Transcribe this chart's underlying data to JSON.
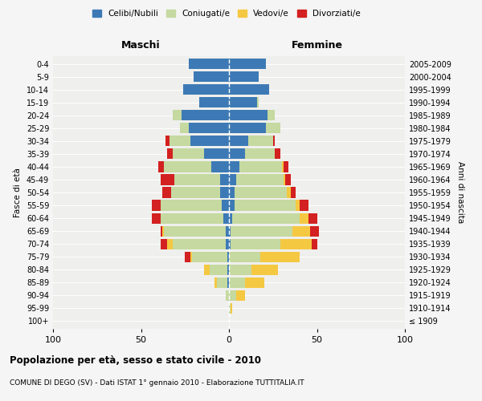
{
  "age_groups": [
    "100+",
    "95-99",
    "90-94",
    "85-89",
    "80-84",
    "75-79",
    "70-74",
    "65-69",
    "60-64",
    "55-59",
    "50-54",
    "45-49",
    "40-44",
    "35-39",
    "30-34",
    "25-29",
    "20-24",
    "15-19",
    "10-14",
    "5-9",
    "0-4"
  ],
  "birth_years": [
    "≤ 1909",
    "1910-1914",
    "1915-1919",
    "1920-1924",
    "1925-1929",
    "1930-1934",
    "1935-1939",
    "1940-1944",
    "1945-1949",
    "1950-1954",
    "1955-1959",
    "1960-1964",
    "1965-1969",
    "1970-1974",
    "1975-1979",
    "1980-1984",
    "1985-1989",
    "1990-1994",
    "1995-1999",
    "2000-2004",
    "2005-2009"
  ],
  "male": {
    "celibi": [
      0,
      0,
      0,
      1,
      1,
      1,
      2,
      2,
      3,
      4,
      5,
      5,
      10,
      14,
      22,
      23,
      27,
      17,
      26,
      20,
      23
    ],
    "coniugati": [
      0,
      0,
      2,
      6,
      10,
      20,
      30,
      35,
      36,
      35,
      28,
      26,
      27,
      18,
      12,
      5,
      5,
      0,
      0,
      0,
      0
    ],
    "vedovi": [
      0,
      0,
      0,
      1,
      3,
      1,
      3,
      1,
      0,
      0,
      0,
      0,
      0,
      0,
      0,
      0,
      0,
      0,
      0,
      0,
      0
    ],
    "divorziati": [
      0,
      0,
      0,
      0,
      0,
      3,
      4,
      1,
      5,
      5,
      5,
      8,
      3,
      3,
      2,
      0,
      0,
      0,
      0,
      0,
      0
    ]
  },
  "female": {
    "nubili": [
      0,
      0,
      0,
      0,
      0,
      0,
      1,
      1,
      2,
      3,
      3,
      4,
      6,
      9,
      11,
      21,
      22,
      16,
      23,
      17,
      21
    ],
    "coniugate": [
      0,
      1,
      4,
      9,
      13,
      18,
      28,
      35,
      38,
      35,
      30,
      27,
      24,
      17,
      14,
      8,
      4,
      1,
      0,
      0,
      0
    ],
    "vedove": [
      0,
      1,
      5,
      11,
      15,
      22,
      18,
      10,
      5,
      2,
      2,
      1,
      1,
      0,
      0,
      0,
      0,
      0,
      0,
      0,
      0
    ],
    "divorziate": [
      0,
      0,
      0,
      0,
      0,
      0,
      3,
      5,
      5,
      5,
      3,
      3,
      3,
      3,
      1,
      0,
      0,
      0,
      0,
      0,
      0
    ]
  },
  "colors": {
    "celibi": "#3d7ab5",
    "coniugati": "#c5d9a0",
    "vedovi": "#f5c842",
    "divorziati": "#d32020"
  },
  "xlim": 100,
  "title": "Popolazione per età, sesso e stato civile - 2010",
  "subtitle": "COMUNE DI DEGO (SV) - Dati ISTAT 1° gennaio 2010 - Elaborazione TUTTITALIA.IT",
  "ylabel_left": "Fasce di età",
  "ylabel_right": "Anni di nascita",
  "xlabel_left": "Maschi",
  "xlabel_right": "Femmine",
  "legend_labels": [
    "Celibi/Nubili",
    "Coniugati/e",
    "Vedovi/e",
    "Divorziati/e"
  ],
  "bg_color": "#f5f5f5",
  "plot_bg_color": "#efefed"
}
